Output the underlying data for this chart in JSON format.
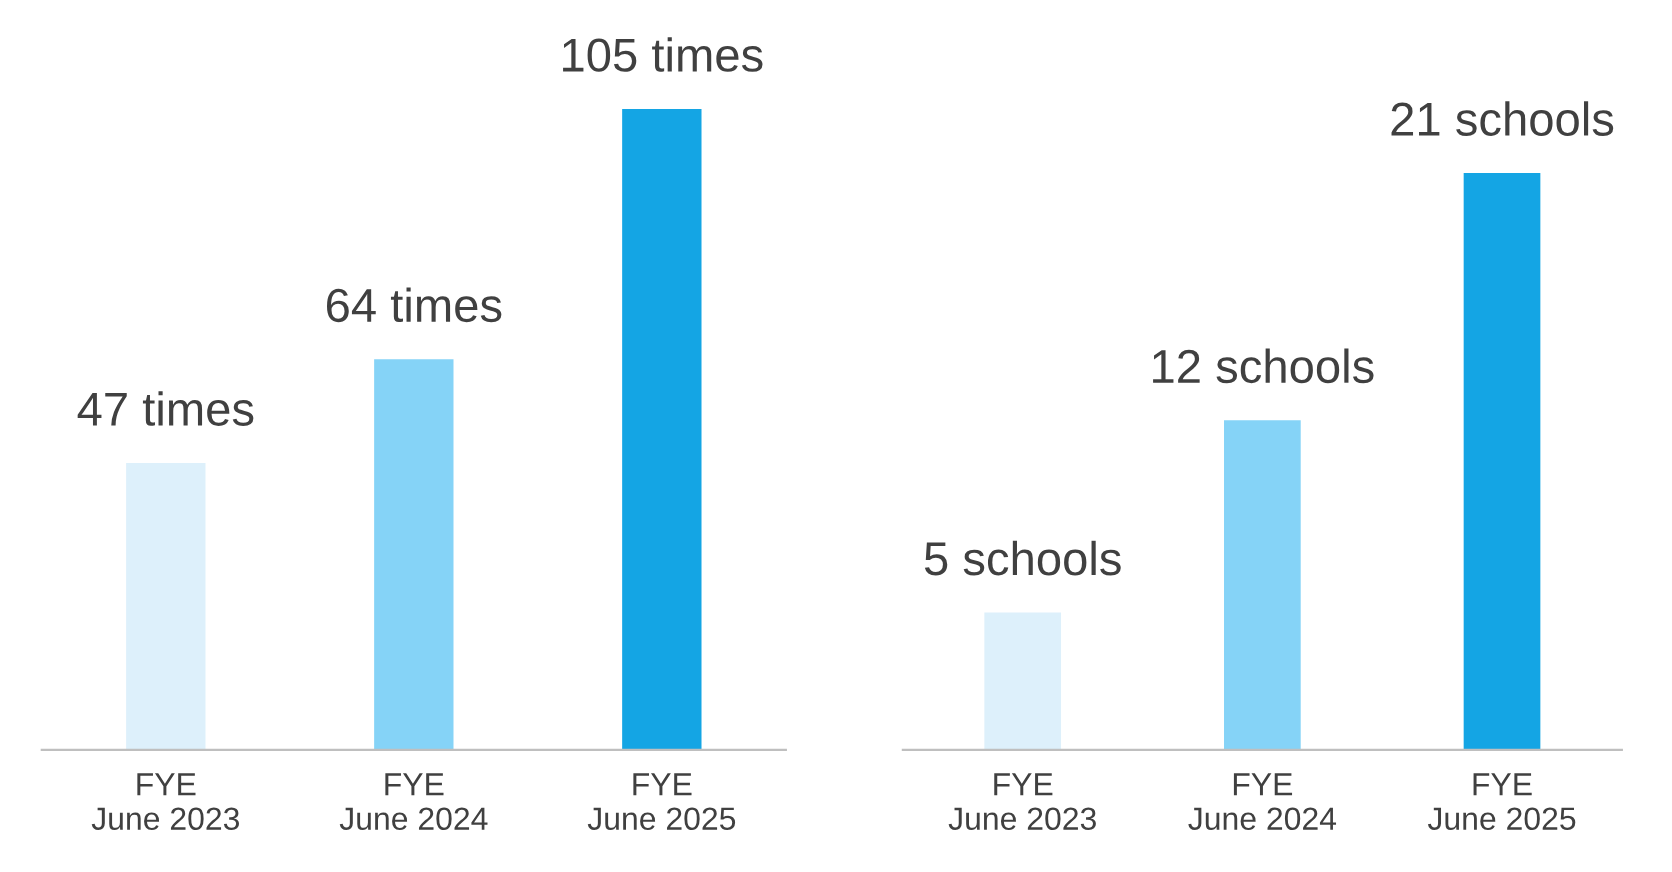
{
  "chart_data": [
    {
      "type": "bar",
      "categories": [
        "FYE\nJune 2023",
        "FYE\nJune 2024",
        "FYE\nJune 2025"
      ],
      "values": [
        47,
        64,
        105
      ],
      "colors": [
        "#ddf0fb",
        "#85d3f7",
        "#14a5e4"
      ],
      "value_labels": [
        "47 times",
        "64 times",
        "105 times"
      ],
      "grid": false,
      "legend": false
    },
    {
      "type": "bar",
      "categories": [
        "FYE\nJune 2023",
        "FYE\nJune 2024",
        "FYE\nJune 2025"
      ],
      "values": [
        5,
        12,
        21
      ],
      "colors": [
        "#ddf0fb",
        "#85d3f7",
        "#14a5e4"
      ],
      "value_labels": [
        "5 schools",
        "12 schools",
        "21 schools"
      ],
      "grid": false,
      "legend": false
    }
  ]
}
